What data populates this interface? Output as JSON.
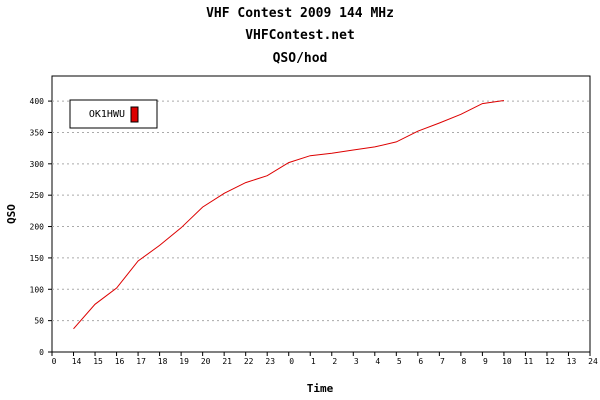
{
  "chart_data": {
    "type": "line",
    "title_lines": [
      "VHF Contest 2009 144 MHz",
      "VHFContest.net",
      "QSO/hod"
    ],
    "xlabel": "Time",
    "ylabel": "QSO",
    "x_tick_labels": [
      "0",
      "14",
      "15",
      "16",
      "17",
      "18",
      "19",
      "20",
      "21",
      "22",
      "23",
      "0",
      "1",
      "2",
      "3",
      "4",
      "5",
      "6",
      "7",
      "8",
      "9",
      "10",
      "11",
      "12",
      "13",
      "24"
    ],
    "y_ticks": [
      0,
      50,
      100,
      150,
      200,
      250,
      300,
      350,
      400
    ],
    "ylim": [
      0,
      440
    ],
    "grid": "horizontal dotted",
    "legend_position": "top-left",
    "series": [
      {
        "name": "OK1HWU",
        "color": "#dd0000",
        "x": [
          "14",
          "15",
          "16",
          "17",
          "18",
          "19",
          "20",
          "21",
          "22",
          "23",
          "0",
          "1",
          "2",
          "3",
          "4",
          "5",
          "6",
          "7",
          "8",
          "9",
          "10"
        ],
        "values": [
          37,
          76,
          102,
          145,
          170,
          198,
          231,
          253,
          270,
          281,
          302,
          313,
          317,
          322,
          327,
          335,
          352,
          365,
          379,
          396,
          401
        ]
      }
    ]
  }
}
